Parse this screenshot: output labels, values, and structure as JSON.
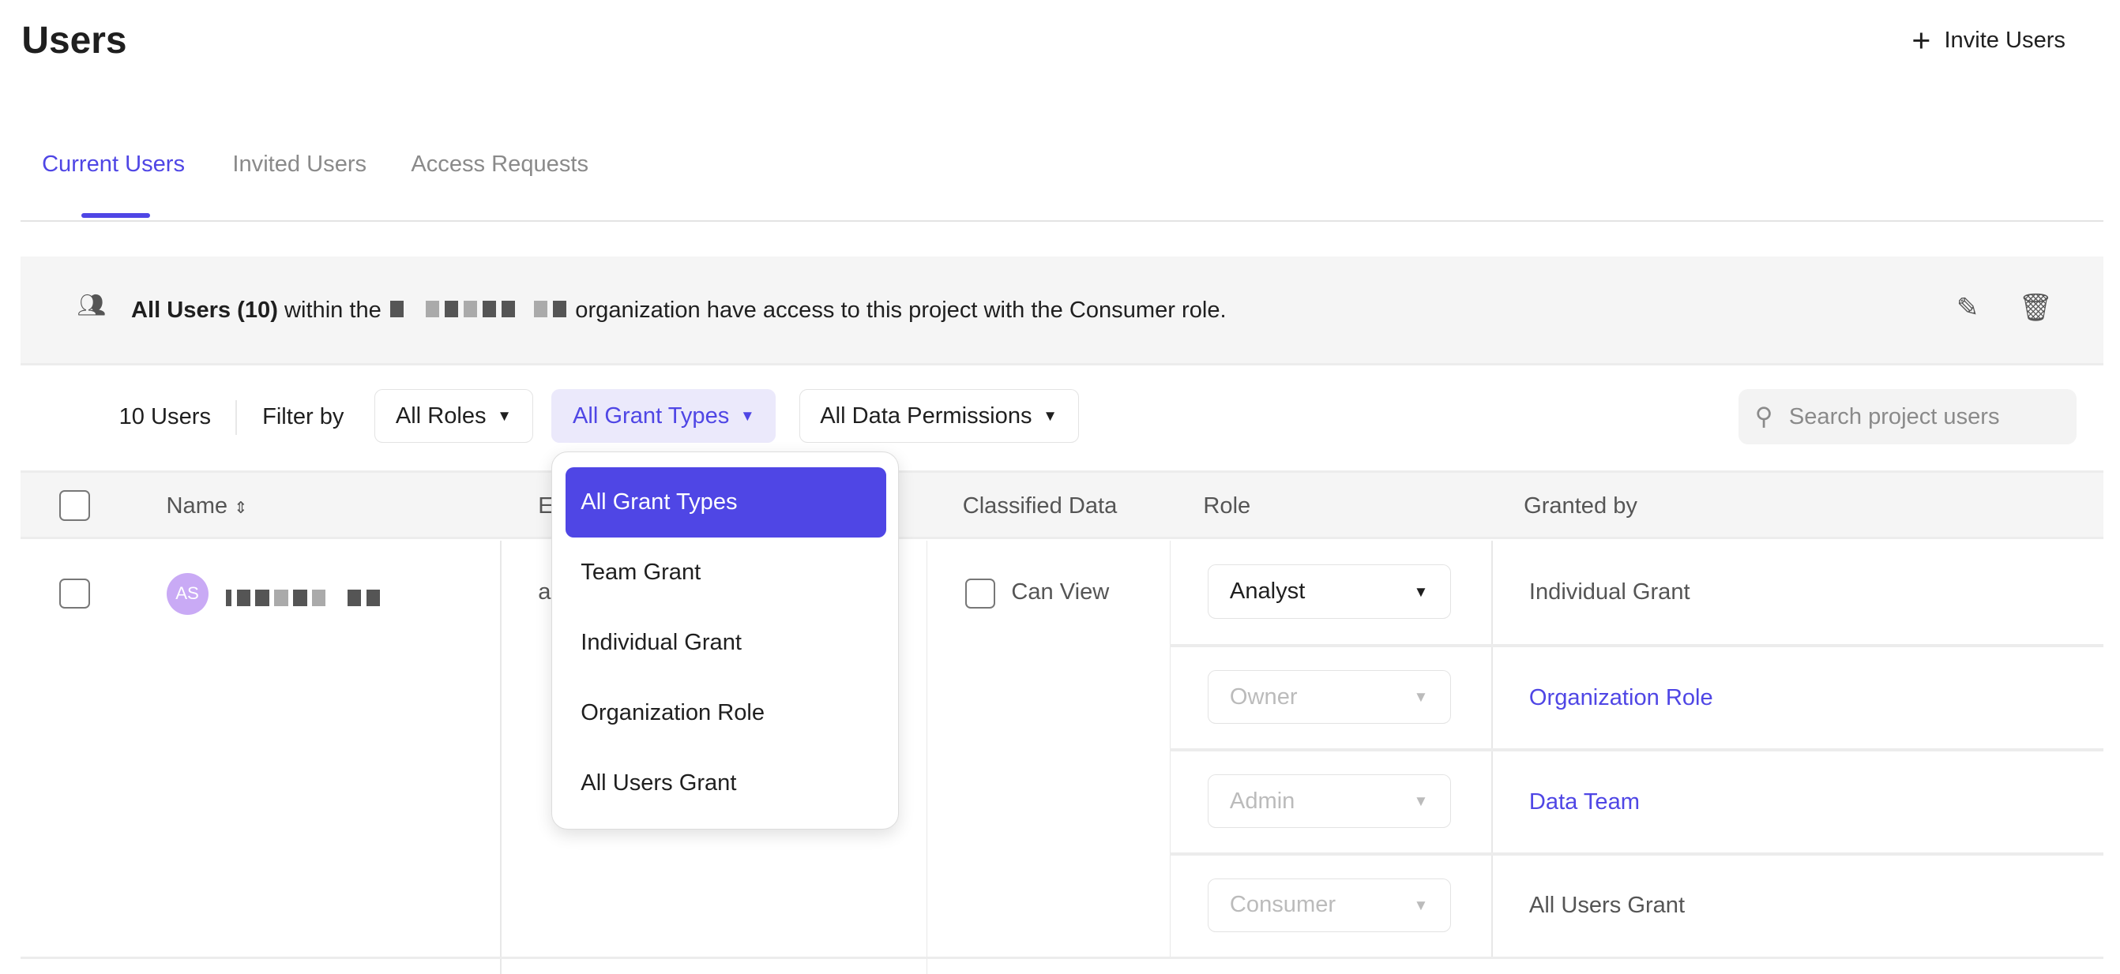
{
  "header": {
    "title": "Users",
    "invite_label": "Invite Users"
  },
  "tabs": [
    {
      "label": "Current Users",
      "active": true
    },
    {
      "label": "Invited Users"
    },
    {
      "label": "Access Requests"
    }
  ],
  "banner": {
    "bold": "All Users (10)",
    "pre": "within the",
    "post": "organization have access to this project with the Consumer role."
  },
  "filters": {
    "count": "10 Users",
    "filter_by": "Filter by",
    "roles": "All Roles",
    "grant_types": "All Grant Types",
    "data_permissions": "All Data Permissions",
    "search_placeholder": "Search project users"
  },
  "table": {
    "headers": {
      "name": "Name",
      "email": "E",
      "classified": "Classified Data",
      "role": "Role",
      "granted_by": "Granted by"
    },
    "row": {
      "initials": "AS",
      "email_partial": "a",
      "classified_label": "Can View",
      "grants": [
        {
          "role": "Analyst",
          "granted_by": "Individual Grant",
          "enabled": true
        },
        {
          "role": "Owner",
          "granted_by": "Organization Role",
          "link": true
        },
        {
          "role": "Admin",
          "granted_by": "Data Team",
          "link": true
        },
        {
          "role": "Consumer",
          "granted_by": "All Users Grant"
        }
      ]
    }
  },
  "dropdown": {
    "items": [
      "All Grant Types",
      "Team Grant",
      "Individual Grant",
      "Organization Role",
      "All Users Grant"
    ],
    "selected": "All Grant Types"
  },
  "colors": {
    "accent": "#4f46e5",
    "avatar": "#c9aaf5"
  }
}
